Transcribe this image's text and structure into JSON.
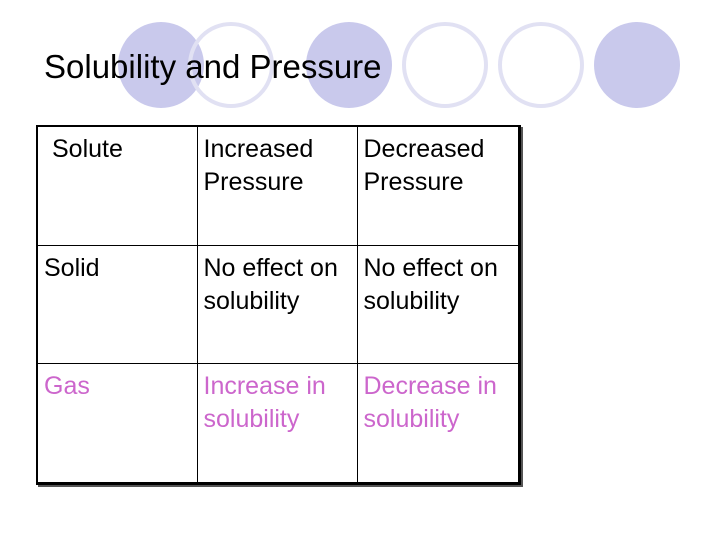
{
  "slide": {
    "title": "Solubility and Pressure"
  },
  "colors": {
    "text": "#000000",
    "gas_row": "#cc66cc",
    "circle_fill": "#c9c9ec",
    "circle_ring": "#e1e1f3"
  },
  "table": {
    "header": {
      "solute": "Solute",
      "increased": "Increased Pressure",
      "decreased": "Decreased Pressure"
    },
    "rows": [
      {
        "solute": "Solid",
        "increased": "No effect on solubility",
        "decreased": "No effect on solubility"
      },
      {
        "solute": "Gas",
        "increased": "Increase in solubility",
        "decreased": "Decrease in solubility"
      }
    ]
  }
}
